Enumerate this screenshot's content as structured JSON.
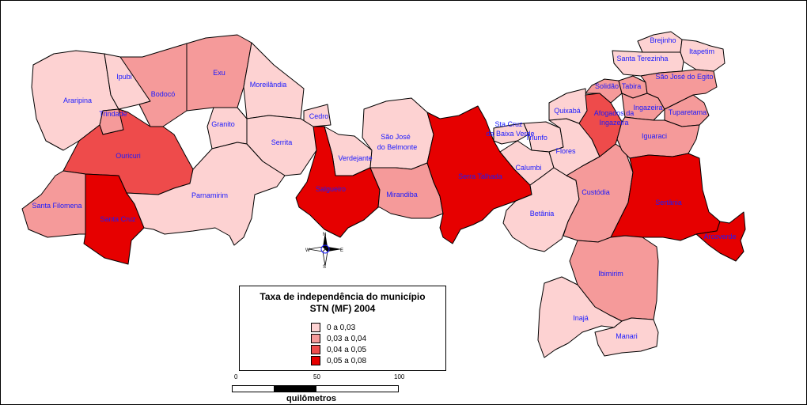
{
  "legend": {
    "title_line1": "Taxa de independência do município",
    "title_line2": "STN (MF) 2004",
    "classes": [
      {
        "label": "0      a 0,03",
        "color": "#fdd2d2"
      },
      {
        "label": "0,03 a 0,04",
        "color": "#f59a9a"
      },
      {
        "label": "0,04 a 0,05",
        "color": "#ee4b4b"
      },
      {
        "label": "0,05 a 0,08",
        "color": "#e60000"
      }
    ]
  },
  "scale": {
    "ticks": [
      "0",
      "50",
      "100"
    ],
    "unit": "quilômetros"
  },
  "compass": {
    "n": "N",
    "s": "S",
    "e": "E",
    "w": "W"
  },
  "municipalities": [
    {
      "name": "Araripina",
      "class": 0
    },
    {
      "name": "Ipubi",
      "class": 0
    },
    {
      "name": "Trindade",
      "class": 1
    },
    {
      "name": "Bodocó",
      "class": 1
    },
    {
      "name": "Exu",
      "class": 1
    },
    {
      "name": "Moreilândia",
      "class": 0
    },
    {
      "name": "Granito",
      "class": 0
    },
    {
      "name": "Cedro",
      "class": 0
    },
    {
      "name": "Serrita",
      "class": 0
    },
    {
      "name": "Ouricuri",
      "class": 2
    },
    {
      "name": "Santa Filomena",
      "class": 1
    },
    {
      "name": "Santa Cruz",
      "class": 3
    },
    {
      "name": "Parnamirim",
      "class": 0
    },
    {
      "name": "Verdejante",
      "class": 0
    },
    {
      "name": "Salgueiro",
      "class": 3
    },
    {
      "name": "São José",
      "class": 0
    },
    {
      "name": "do Belmonte",
      "class": 0
    },
    {
      "name": "Mirandiba",
      "class": 1
    },
    {
      "name": "Serra Talhada",
      "class": 3
    },
    {
      "name": "Sta.Cruz",
      "class": 0
    },
    {
      "name": "da Baixa Verde",
      "class": 0
    },
    {
      "name": "Triunfo",
      "class": 0
    },
    {
      "name": "Calumbi",
      "class": 0
    },
    {
      "name": "Flores",
      "class": 0
    },
    {
      "name": "Betânia",
      "class": 0
    },
    {
      "name": "Quixabá",
      "class": 0
    },
    {
      "name": "Custódia",
      "class": 1
    },
    {
      "name": "Afogados da",
      "class": 2
    },
    {
      "name": "Ingazeira",
      "class": 2
    },
    {
      "name": "Solidão",
      "class": 1
    },
    {
      "name": "Tabira",
      "class": 1
    },
    {
      "name": "Ingazeira",
      "class": 1
    },
    {
      "name": "Tuparetama",
      "class": 1
    },
    {
      "name": "Iguaraci",
      "class": 1
    },
    {
      "name": "Brejinho",
      "class": 0
    },
    {
      "name": "Itapetim",
      "class": 0
    },
    {
      "name": "Santa Terezinha",
      "class": 0
    },
    {
      "name": "São José do Egito",
      "class": 1
    },
    {
      "name": "Sertânia",
      "class": 3
    },
    {
      "name": "Arcoverde",
      "class": 3
    },
    {
      "name": "Ibimirim",
      "class": 1
    },
    {
      "name": "Inajá",
      "class": 0
    },
    {
      "name": "Manari",
      "class": 0
    }
  ]
}
